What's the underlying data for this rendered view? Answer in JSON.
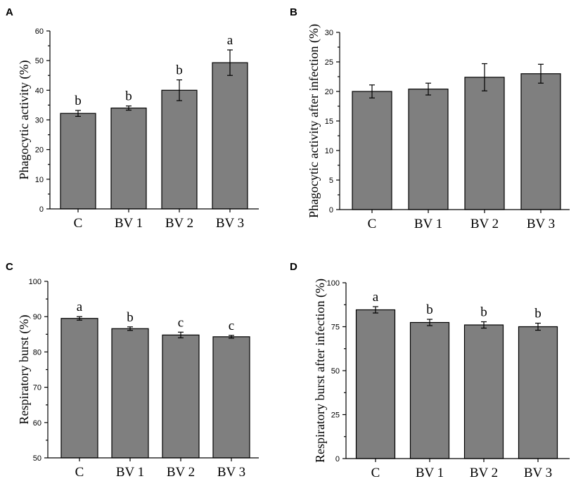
{
  "chart_data": [
    {
      "type": "bar",
      "panel_label": "A",
      "categories": [
        "C",
        "BV 1",
        "BV 2",
        "BV 3"
      ],
      "values": [
        32.2,
        34.0,
        40.0,
        49.3
      ],
      "errors": [
        1.0,
        0.7,
        3.5,
        4.3
      ],
      "significance": [
        "b",
        "b",
        "b",
        "a"
      ],
      "ylabel": "Phagocytic activity (%)",
      "ylim": [
        0,
        60
      ],
      "yticks": [
        0,
        10,
        20,
        30,
        40,
        50,
        60
      ]
    },
    {
      "type": "bar",
      "panel_label": "B",
      "categories": [
        "C",
        "BV 1",
        "BV 2",
        "BV 3"
      ],
      "values": [
        20.0,
        20.4,
        22.4,
        23.0
      ],
      "errors": [
        1.1,
        1.0,
        2.3,
        1.6
      ],
      "significance": [
        "",
        "",
        "",
        ""
      ],
      "ylabel": "Phagocytic activity after infection (%)",
      "ylim": [
        0,
        30
      ],
      "yticks": [
        0,
        5,
        10,
        15,
        20,
        25,
        30
      ]
    },
    {
      "type": "bar",
      "panel_label": "C",
      "categories": [
        "C",
        "BV 1",
        "BV 2",
        "BV 3"
      ],
      "values": [
        89.5,
        86.6,
        84.8,
        84.3
      ],
      "errors": [
        0.5,
        0.5,
        0.8,
        0.4
      ],
      "significance": [
        "a",
        "b",
        "c",
        "c"
      ],
      "ylabel": "Respiratory burst (%)",
      "ylim": [
        50,
        100
      ],
      "yticks": [
        50,
        60,
        70,
        80,
        90,
        100
      ]
    },
    {
      "type": "bar",
      "panel_label": "D",
      "categories": [
        "C",
        "BV 1",
        "BV 2",
        "BV 3"
      ],
      "values": [
        84.6,
        77.4,
        76.0,
        75.0
      ],
      "errors": [
        1.8,
        1.8,
        1.8,
        2.0
      ],
      "significance": [
        "a",
        "b",
        "b",
        "b"
      ],
      "ylabel": "Respiratory burst after infection (%)",
      "ylim": [
        0,
        100
      ],
      "yticks": [
        0,
        25,
        50,
        75,
        100
      ]
    }
  ],
  "colors": {
    "bar": "#7f7f7f",
    "axis": "#000000"
  }
}
